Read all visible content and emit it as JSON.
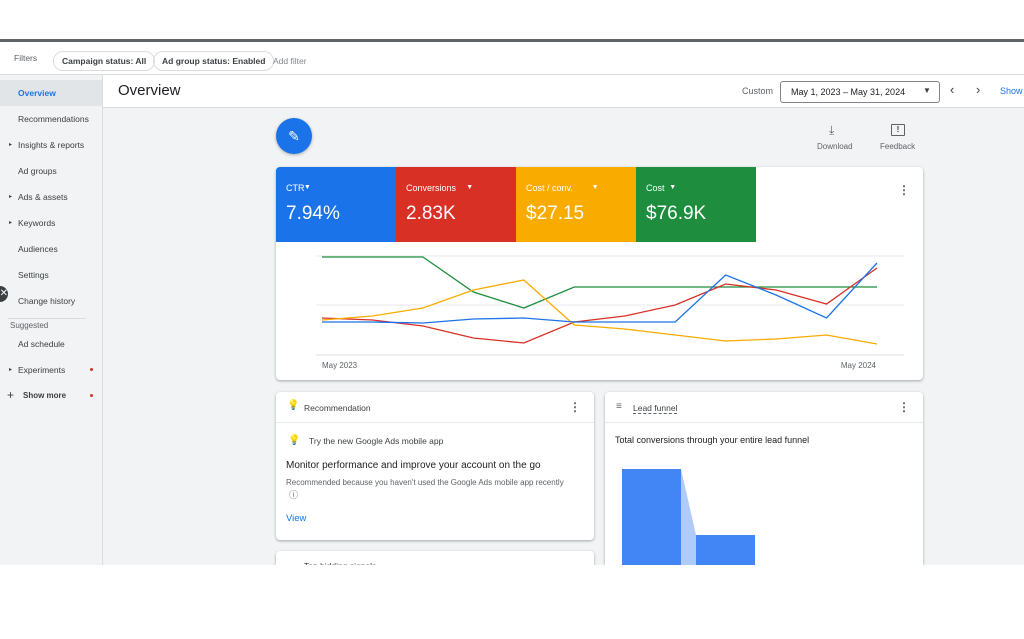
{
  "filters": {
    "label": "Filters",
    "chips": [
      "Campaign status: All",
      "Ad group status: Enabled"
    ],
    "add": "Add filter"
  },
  "nav": {
    "items": [
      "Overview",
      "Recommendations",
      "Insights & reports",
      "Ad groups",
      "Ads & assets",
      "Keywords",
      "Audiences",
      "Settings",
      "Change history"
    ],
    "suggested_label": "Suggested",
    "suggested": [
      "Ad schedule",
      "Experiments",
      "Show more"
    ]
  },
  "header": {
    "title": "Overview",
    "range_label": "Custom",
    "date_range": "May 1, 2023 – May 31, 2024",
    "show": "Show"
  },
  "toolbar": {
    "download": "Download",
    "feedback": "Feedback"
  },
  "metrics": [
    {
      "name": "CTR",
      "value": "7.94%",
      "color": "#1a73e8"
    },
    {
      "name": "Conversions",
      "value": "2.83K",
      "color": "#d93025"
    },
    {
      "name": "Cost / conv.",
      "value": "$27.15",
      "color": "#f9ab00"
    },
    {
      "name": "Cost",
      "value": "$76.9K",
      "color": "#1e8e3e"
    }
  ],
  "chart": {
    "x_labels": [
      "May 2023",
      "May 2024"
    ],
    "series": [
      {
        "color": "#1e8e3e",
        "values": [
          98,
          98,
          98,
          63,
          47,
          68,
          68,
          68,
          68,
          68,
          68,
          68
        ]
      },
      {
        "color": "#d93025",
        "values": [
          37,
          35,
          29,
          17,
          12,
          33,
          39,
          50,
          71,
          65,
          51,
          87
        ]
      },
      {
        "color": "#f9ab00",
        "values": [
          35,
          39,
          47,
          65,
          75,
          30,
          26,
          20,
          14,
          16,
          20,
          11
        ]
      },
      {
        "color": "#1a73e8",
        "values": [
          33,
          33,
          32,
          36,
          37,
          33,
          33,
          33,
          80,
          60,
          37,
          92
        ]
      }
    ]
  },
  "recommendation": {
    "header": "Recommendation",
    "tip": "Try the new Google Ads mobile app",
    "title": "Monitor performance and improve your account on the go",
    "reason": "Recommended because you haven't used the Google Ads mobile app recently",
    "action": "View"
  },
  "lead_funnel": {
    "header": "Lead funnel",
    "title": "Total conversions through your entire lead funnel"
  },
  "partial_card": {
    "header": "Top bidding signals"
  }
}
